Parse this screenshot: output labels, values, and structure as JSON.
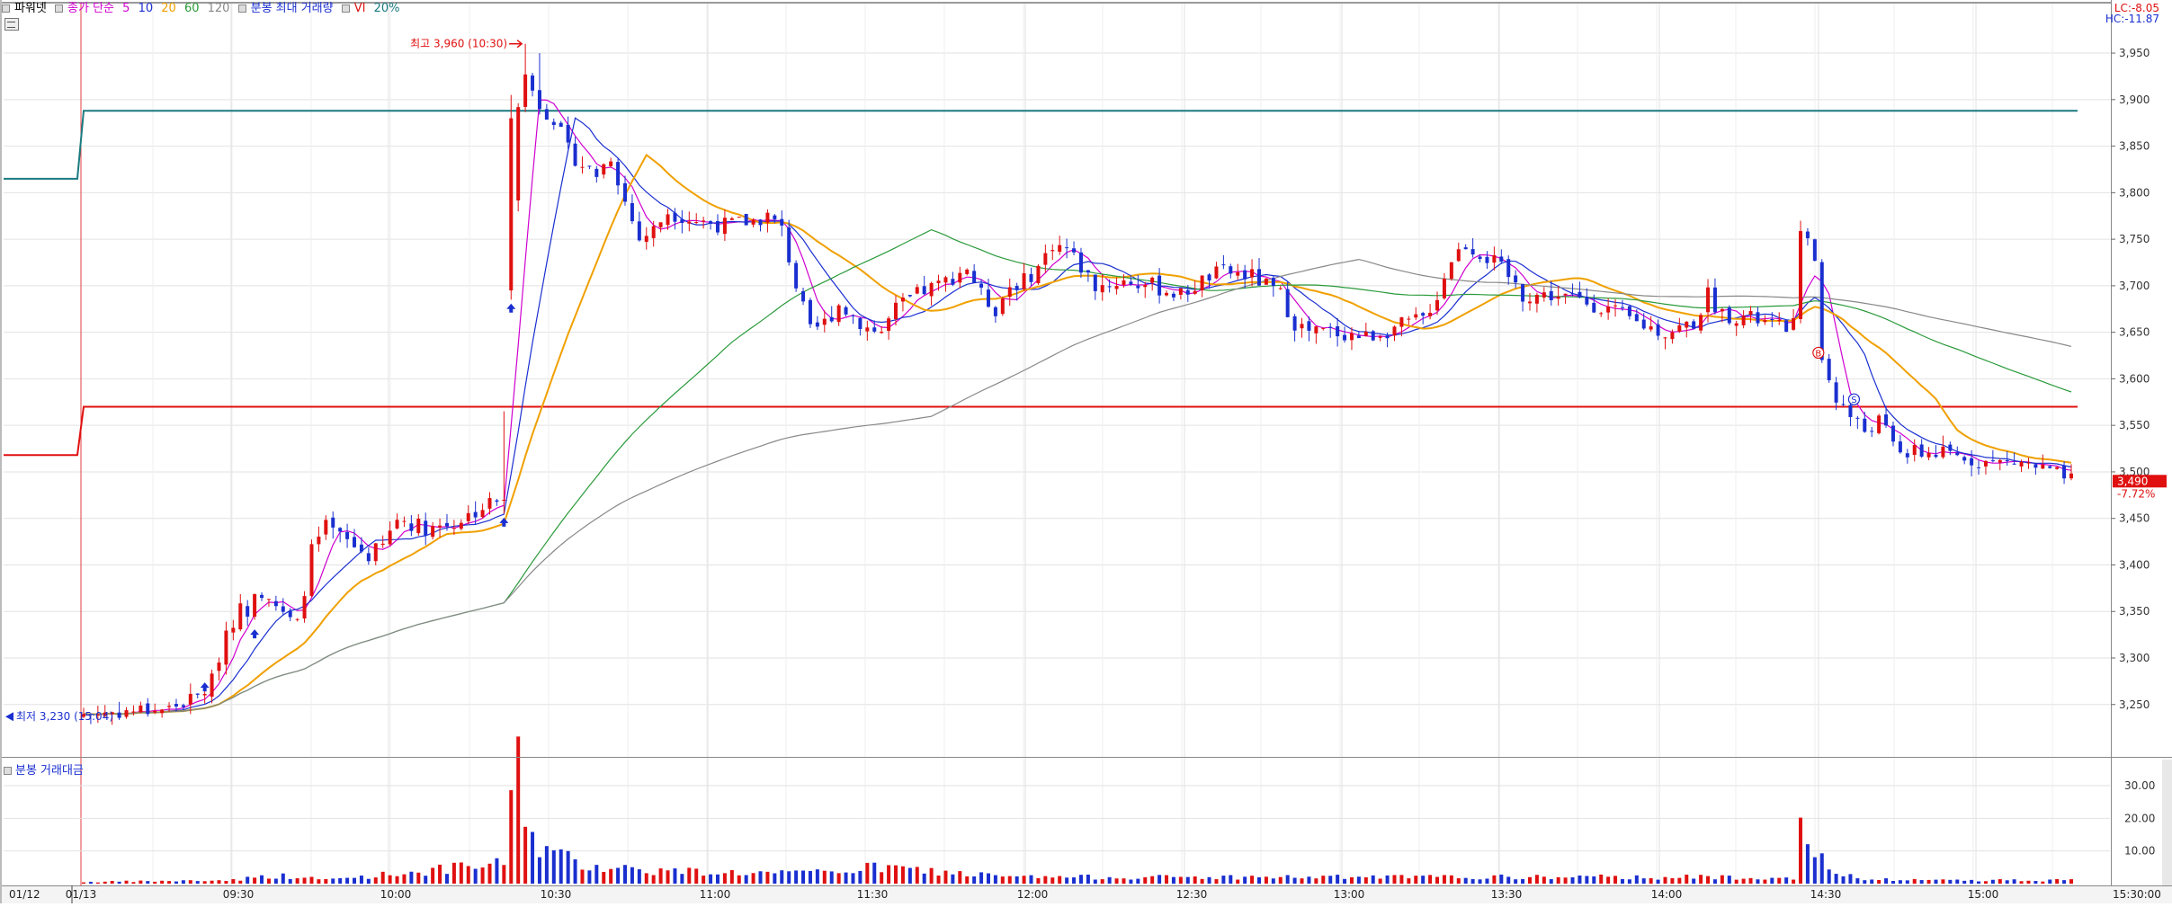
{
  "legend": {
    "title": "파워넷",
    "ma_label": "종가 단순",
    "ma_periods": [
      {
        "label": "5",
        "color": "#d000d0"
      },
      {
        "label": "10",
        "color": "#1a2fd0"
      },
      {
        "label": "20",
        "color": "#f0a000"
      },
      {
        "label": "60",
        "color": "#2a9a3a"
      },
      {
        "label": "120",
        "color": "#888888"
      }
    ],
    "max_volume_label": "분봉 최대 거래량",
    "vi_label": "VI",
    "vi_value": "20%"
  },
  "corner": {
    "lc": "LC:-8.05",
    "hc": "HC:-11.87"
  },
  "price_axis": {
    "ticks": [
      "3,950",
      "3,900",
      "3,850",
      "3,800",
      "3,750",
      "3,700",
      "3,650",
      "3,600",
      "3,550",
      "3,500",
      "3,450",
      "3,400",
      "3,350",
      "3,300",
      "3,250"
    ]
  },
  "time_axis": {
    "labels": [
      "01/12",
      "01/13",
      "09:30",
      "10:00",
      "10:30",
      "11:00",
      "11:30",
      "12:00",
      "12:30",
      "13:00",
      "13:30",
      "14:00",
      "14:30",
      "15:00",
      "15:30:00"
    ]
  },
  "annotations": {
    "high_label": "최고 3,960 (10:30)",
    "low_label": "최저 3,230 (15:04)",
    "current_price": "3,490",
    "current_change": "-7.72%",
    "signal_b": "B",
    "signal_s": "S"
  },
  "volume_panel": {
    "title": "분봉 거래대금",
    "ticks": [
      "30.00",
      "20.00",
      "10.00"
    ]
  },
  "chart_data": {
    "type": "candlestick",
    "ylim": [
      3215,
      3980
    ],
    "vi_levels": [
      {
        "prev_day": 3815,
        "today": 3888,
        "color": "#1a7a80"
      },
      {
        "prev_day": 3518,
        "today": 3570,
        "color": "#e01010"
      }
    ],
    "close_anchors": [
      [
        0,
        3240
      ],
      [
        6,
        3243
      ],
      [
        12,
        3246
      ],
      [
        16,
        3258
      ],
      [
        18,
        3275
      ],
      [
        20,
        3330
      ],
      [
        22,
        3352
      ],
      [
        23,
        3352
      ],
      [
        24,
        3375
      ],
      [
        26,
        3370
      ],
      [
        28,
        3345
      ],
      [
        30,
        3335
      ],
      [
        32,
        3415
      ],
      [
        34,
        3440
      ],
      [
        37,
        3425
      ],
      [
        40,
        3410
      ],
      [
        42,
        3420
      ],
      [
        44,
        3450
      ],
      [
        46,
        3445
      ],
      [
        48,
        3440
      ],
      [
        52,
        3445
      ],
      [
        56,
        3462
      ],
      [
        58,
        3470
      ],
      [
        59,
        3470
      ],
      [
        60,
        3800
      ],
      [
        61,
        3900
      ],
      [
        62,
        3925
      ],
      [
        64,
        3895
      ],
      [
        66,
        3880
      ],
      [
        68,
        3845
      ],
      [
        70,
        3830
      ],
      [
        72,
        3820
      ],
      [
        74,
        3840
      ],
      [
        76,
        3790
      ],
      [
        78,
        3750
      ],
      [
        80,
        3760
      ],
      [
        82,
        3780
      ],
      [
        86,
        3770
      ],
      [
        90,
        3765
      ],
      [
        94,
        3770
      ],
      [
        96,
        3775
      ],
      [
        98,
        3760
      ],
      [
        100,
        3700
      ],
      [
        102,
        3650
      ],
      [
        104,
        3660
      ],
      [
        106,
        3680
      ],
      [
        110,
        3655
      ],
      [
        112,
        3650
      ],
      [
        114,
        3675
      ],
      [
        118,
        3695
      ],
      [
        120,
        3700
      ],
      [
        124,
        3720
      ],
      [
        126,
        3690
      ],
      [
        128,
        3675
      ],
      [
        130,
        3700
      ],
      [
        132,
        3705
      ],
      [
        134,
        3720
      ],
      [
        136,
        3745
      ],
      [
        138,
        3740
      ],
      [
        140,
        3720
      ],
      [
        142,
        3700
      ],
      [
        146,
        3705
      ],
      [
        150,
        3700
      ],
      [
        154,
        3690
      ],
      [
        158,
        3710
      ],
      [
        160,
        3715
      ],
      [
        164,
        3710
      ],
      [
        166,
        3700
      ],
      [
        168,
        3690
      ],
      [
        170,
        3660
      ],
      [
        172,
        3650
      ],
      [
        176,
        3650
      ],
      [
        180,
        3645
      ],
      [
        184,
        3655
      ],
      [
        188,
        3665
      ],
      [
        190,
        3690
      ],
      [
        192,
        3730
      ],
      [
        194,
        3745
      ],
      [
        196,
        3735
      ],
      [
        198,
        3725
      ],
      [
        200,
        3710
      ],
      [
        202,
        3690
      ],
      [
        206,
        3690
      ],
      [
        210,
        3685
      ],
      [
        214,
        3675
      ],
      [
        218,
        3660
      ],
      [
        222,
        3650
      ],
      [
        226,
        3660
      ],
      [
        228,
        3690
      ],
      [
        230,
        3670
      ],
      [
        234,
        3665
      ],
      [
        238,
        3655
      ],
      [
        240,
        3660
      ],
      [
        241,
        3750
      ],
      [
        242,
        3760
      ],
      [
        243,
        3720
      ],
      [
        244,
        3620
      ],
      [
        246,
        3580
      ],
      [
        248,
        3560
      ],
      [
        250,
        3545
      ],
      [
        252,
        3555
      ],
      [
        254,
        3530
      ],
      [
        256,
        3520
      ],
      [
        260,
        3520
      ],
      [
        264,
        3515
      ],
      [
        268,
        3510
      ],
      [
        272,
        3510
      ],
      [
        276,
        3500
      ],
      [
        279,
        3490
      ]
    ],
    "volume_anchors": [
      [
        0,
        0.5
      ],
      [
        20,
        1.0
      ],
      [
        27,
        2.5
      ],
      [
        34,
        1.2
      ],
      [
        59,
        6.0
      ],
      [
        60,
        36.0
      ],
      [
        61,
        36.0
      ],
      [
        62,
        24.0
      ],
      [
        63,
        15.0
      ],
      [
        64,
        12.0
      ],
      [
        66,
        9.0
      ],
      [
        70,
        6.0
      ],
      [
        80,
        4.0
      ],
      [
        100,
        3.0
      ],
      [
        112,
        5.0
      ],
      [
        130,
        2.0
      ],
      [
        240,
        2.0
      ],
      [
        241,
        15.0
      ],
      [
        242,
        12.0
      ],
      [
        243,
        9.0
      ],
      [
        244,
        7.0
      ],
      [
        246,
        3.0
      ],
      [
        250,
        1.2
      ],
      [
        279,
        1.0
      ]
    ],
    "volume_ylim": [
      0,
      38
    ]
  }
}
